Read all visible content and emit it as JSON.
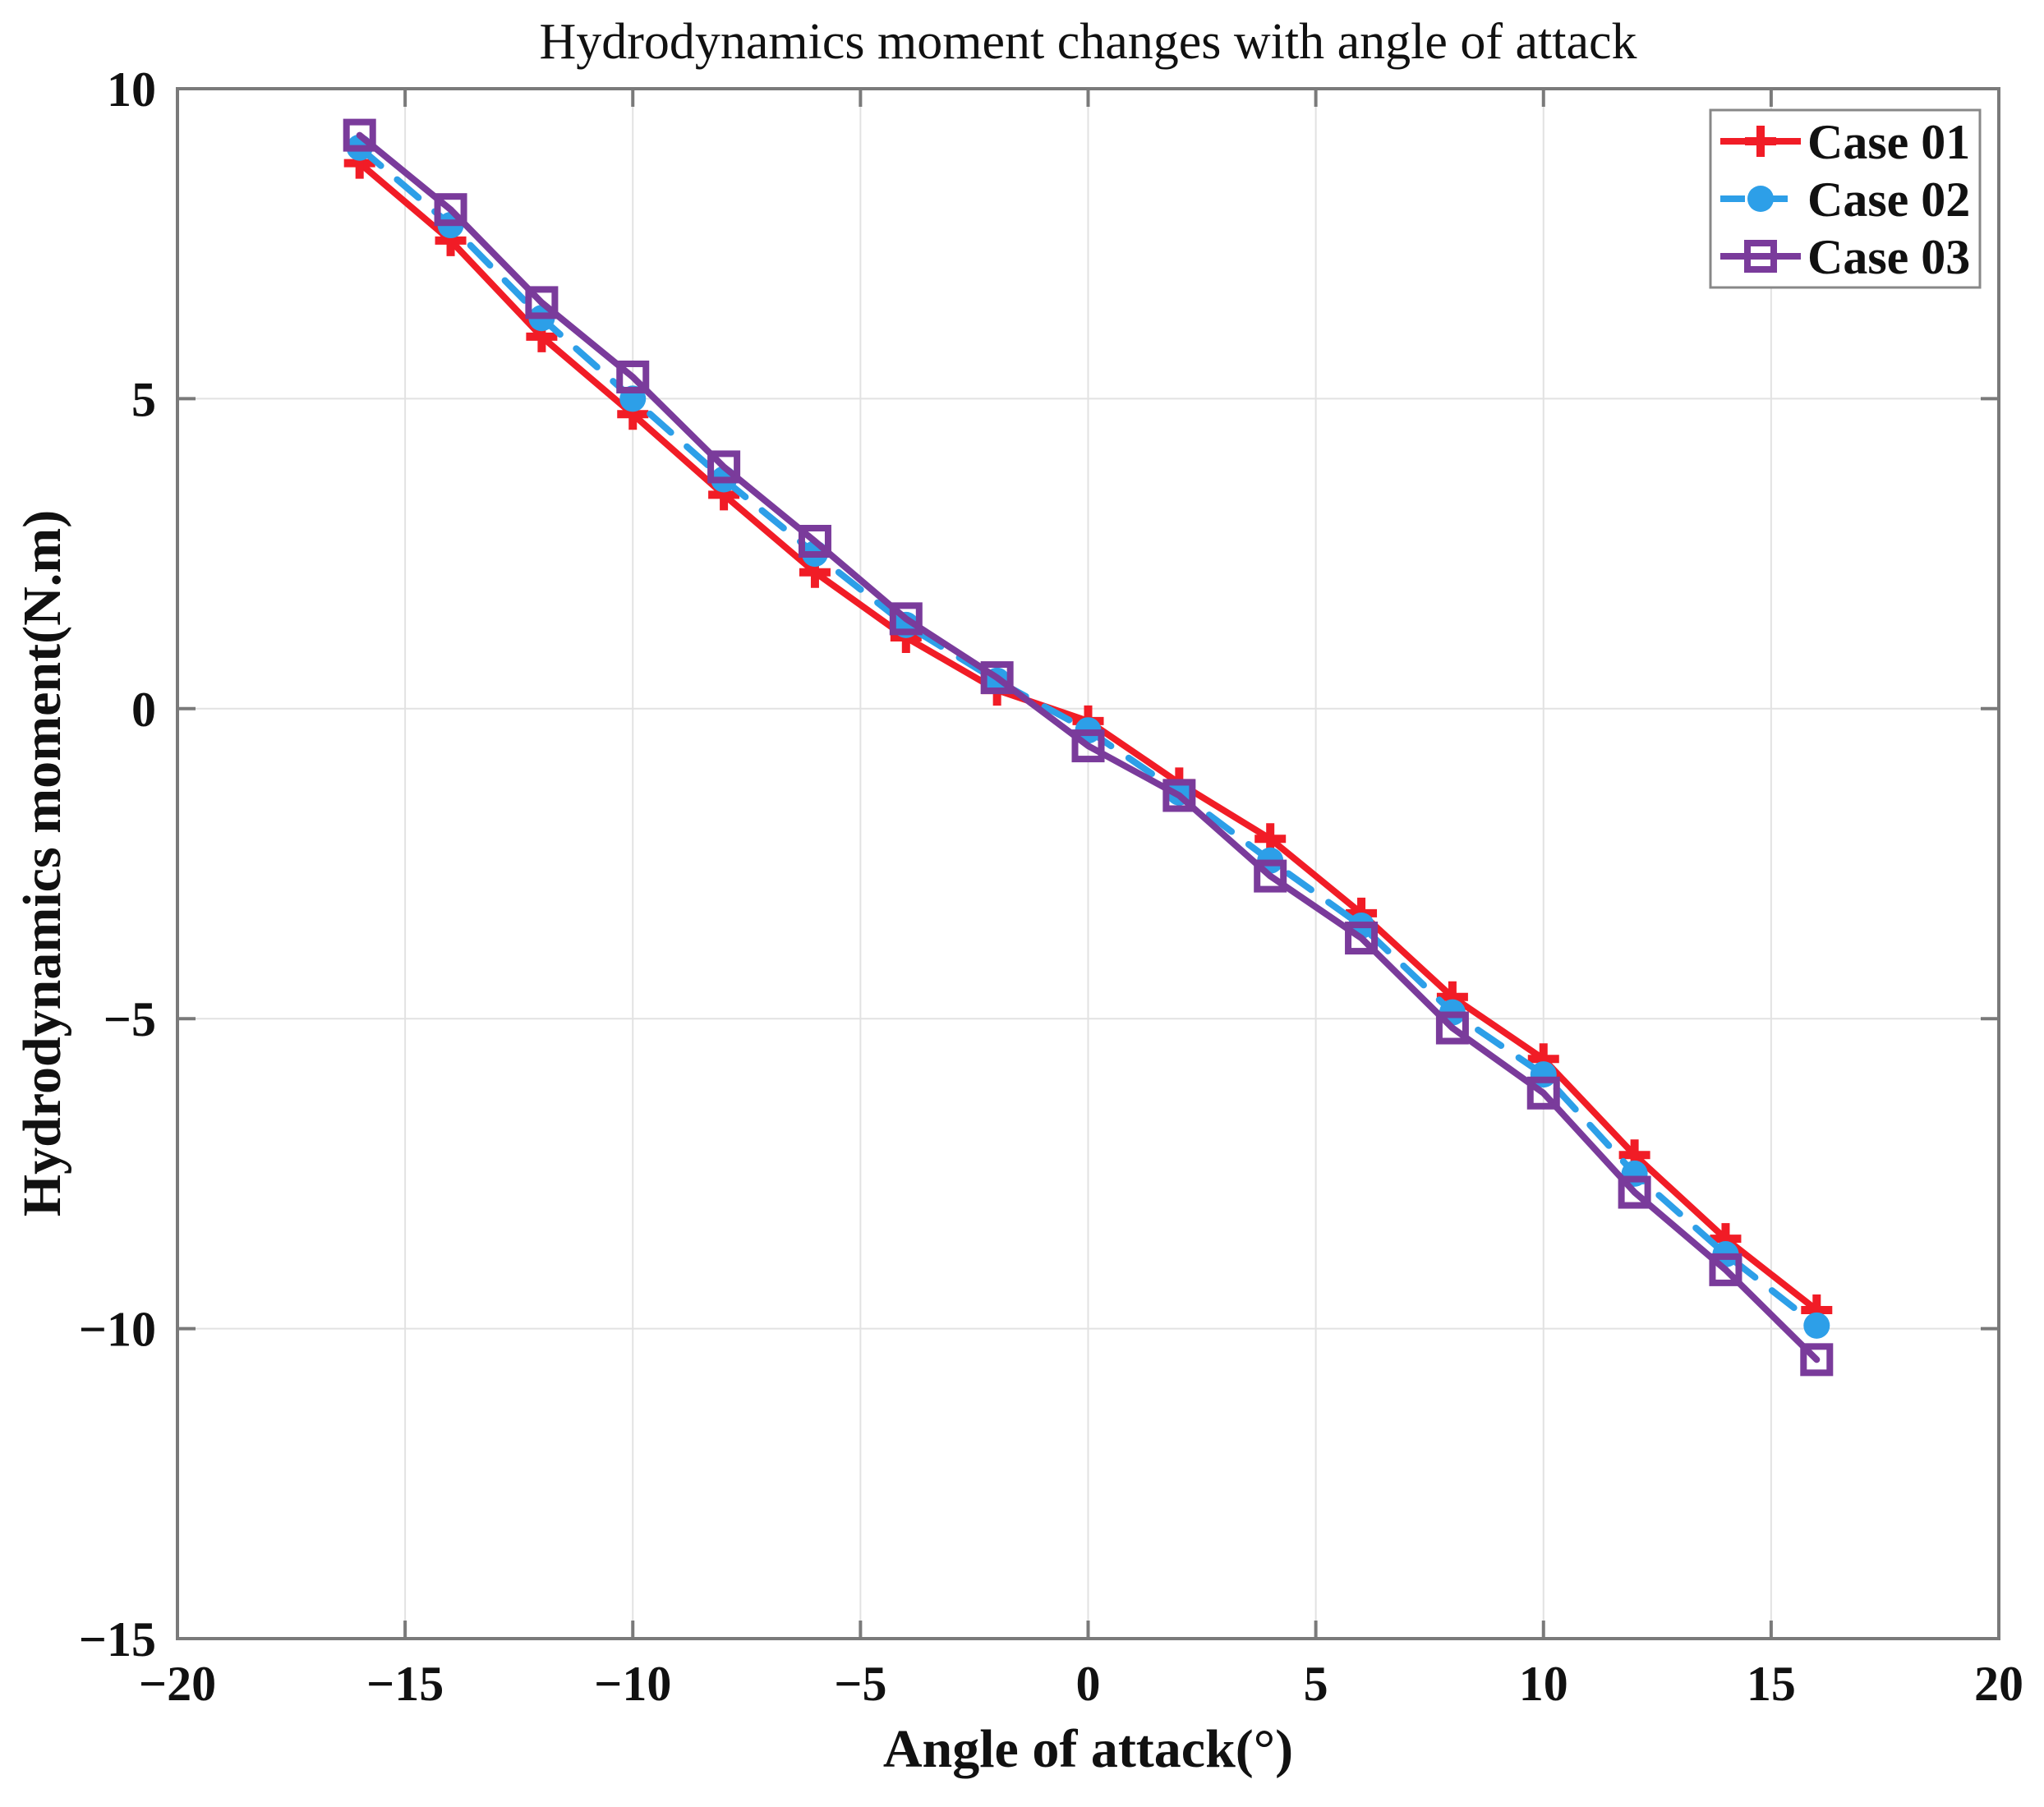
{
  "chart_data": {
    "type": "line",
    "title": "Hydrodynamics moment changes with angle of attack",
    "xlabel": "Angle of attack(°)",
    "ylabel": "Hydrodynamics moment(N.m)",
    "xlim": [
      -20,
      20
    ],
    "ylim": [
      -15,
      10
    ],
    "xticks": [
      -20,
      -15,
      -10,
      -5,
      0,
      5,
      10,
      15,
      20
    ],
    "yticks": [
      -15,
      -10,
      -5,
      0,
      5,
      10
    ],
    "grid": true,
    "legend_position": "top-right",
    "x": [
      -16,
      -14,
      -12,
      -10,
      -8,
      -6,
      -4,
      -2,
      0,
      2,
      4,
      6,
      8,
      10,
      12,
      14,
      16
    ],
    "series": [
      {
        "name": "Case 01",
        "color": "#f11c26",
        "line_style": "solid",
        "marker": "plus",
        "values": [
          8.8,
          7.55,
          6.0,
          4.75,
          3.45,
          2.2,
          1.15,
          0.3,
          -0.2,
          -1.2,
          -2.1,
          -3.3,
          -4.65,
          -5.65,
          -7.2,
          -8.55,
          -9.7
        ]
      },
      {
        "name": "Case 02",
        "color": "#2d9fe8",
        "line_style": "dashed",
        "marker": "circle",
        "values": [
          9.05,
          7.8,
          6.3,
          5.0,
          3.7,
          2.5,
          1.35,
          0.45,
          -0.35,
          -1.35,
          -2.45,
          -3.5,
          -4.9,
          -5.9,
          -7.5,
          -8.8,
          -9.95
        ]
      },
      {
        "name": "Case 03",
        "color": "#7a3b9b",
        "line_style": "solid",
        "marker": "square-open",
        "values": [
          9.25,
          8.05,
          6.55,
          5.35,
          3.9,
          2.7,
          1.45,
          0.5,
          -0.6,
          -1.4,
          -2.7,
          -3.7,
          -5.15,
          -6.2,
          -7.8,
          -9.05,
          -10.5
        ]
      }
    ]
  }
}
